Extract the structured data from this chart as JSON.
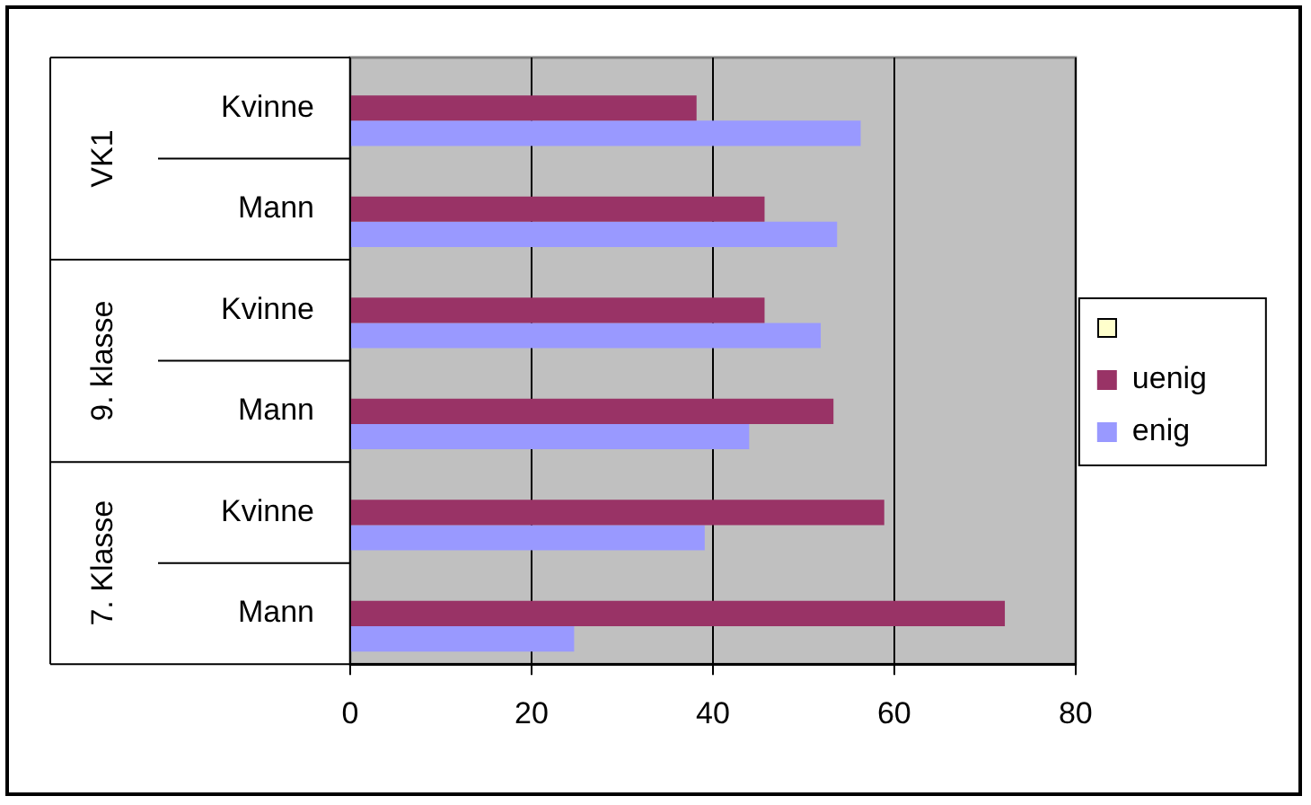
{
  "chart_data": {
    "type": "bar",
    "orientation": "horizontal",
    "categories": [
      "Kvinne",
      "Mann",
      "Kvinne",
      "Mann",
      "Kvinne",
      "Mann"
    ],
    "annotations": [
      "VK1",
      "9. klasse",
      "7. Klasse"
    ],
    "series": [
      {
        "color": "#ffffcc",
        "values": [
          null,
          null,
          null,
          null,
          null,
          null
        ]
      },
      {
        "name": "uenig",
        "color": "#993366",
        "values": [
          38.2,
          45.7,
          45.7,
          53.3,
          58.9,
          72.2
        ]
      },
      {
        "name": "enig",
        "color": "#9999ff",
        "values": [
          56.3,
          53.7,
          51.9,
          44.0,
          39.1,
          24.7
        ]
      }
    ],
    "xlim": [
      0,
      80
    ],
    "xticks": [
      0,
      20,
      40,
      60,
      80
    ],
    "grid": "x",
    "legend": "right"
  }
}
